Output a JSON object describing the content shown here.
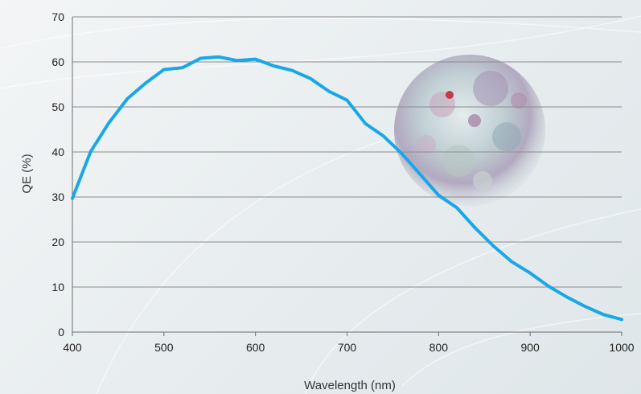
{
  "chart_data": {
    "type": "line",
    "title": "",
    "xlabel": "Wavelength (nm)",
    "ylabel": "QE (%)",
    "xlim": [
      400,
      1000
    ],
    "ylim": [
      0,
      70
    ],
    "x_ticks": [
      400,
      500,
      600,
      700,
      800,
      900,
      1000
    ],
    "y_ticks": [
      0,
      10,
      20,
      30,
      40,
      50,
      60,
      70
    ],
    "grid": "horizontal",
    "legend": "none",
    "series": [
      {
        "color": "#1aa7e6",
        "x": [
          400,
          420,
          440,
          460,
          480,
          500,
          520,
          540,
          560,
          580,
          600,
          620,
          640,
          660,
          680,
          700,
          720,
          740,
          760,
          780,
          800,
          820,
          840,
          860,
          880,
          900,
          920,
          940,
          960,
          980,
          1000
        ],
        "y": [
          29.7,
          40.1,
          46.5,
          51.8,
          55.3,
          58.3,
          58.7,
          60.8,
          61.1,
          60.3,
          60.6,
          59.1,
          58.1,
          56.3,
          53.5,
          51.5,
          46.3,
          43.5,
          39.6,
          35.0,
          30.4,
          27.6,
          23.1,
          19.1,
          15.6,
          13.1,
          10.2,
          7.8,
          5.7,
          3.9,
          2.8
        ]
      }
    ]
  }
}
